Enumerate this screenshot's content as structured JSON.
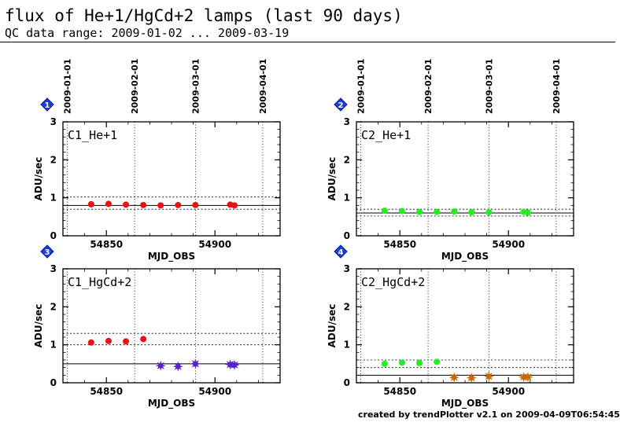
{
  "header": {
    "title": "flux of He+1/HgCd+2 lamps (last 90 days)",
    "subtitle": "QC data range: 2009-01-02 ... 2009-03-19"
  },
  "footer": {
    "credit": "created by trendPlotter v2.1 on 2009-04-09T06:54:45"
  },
  "chart_data": [
    {
      "type": "scatter",
      "badge": "1",
      "label": "C1_He+1",
      "xlabel": "MJD_OBS",
      "ylabel": "ADU/sec",
      "xlim": [
        54830,
        54930
      ],
      "ylim": [
        0,
        3
      ],
      "x_ticks": [
        54850,
        54900
      ],
      "y_ticks": [
        0,
        1,
        2,
        3
      ],
      "top_dates": [
        "2009-01-01",
        "2009-02-01",
        "2009-03-01",
        "2009-04-01"
      ],
      "date_mjd": [
        54832,
        54863,
        54891,
        54922
      ],
      "show_top_dates": true,
      "show_xlabel": true,
      "ref_line": 0.8,
      "ref_band": [
        0.7,
        1.02
      ],
      "series": [
        {
          "color": "#ee1111",
          "marker": "circle",
          "x": [
            54843,
            54851,
            54859,
            54867,
            54875,
            54883,
            54891,
            54907,
            54909
          ],
          "y": [
            0.83,
            0.84,
            0.82,
            0.81,
            0.8,
            0.81,
            0.81,
            0.82,
            0.8
          ]
        }
      ]
    },
    {
      "type": "scatter",
      "badge": "2",
      "label": "C2_He+1",
      "xlabel": "MJD_OBS",
      "ylabel": "ADU/sec",
      "xlim": [
        54830,
        54930
      ],
      "ylim": [
        0,
        3
      ],
      "x_ticks": [
        54850,
        54900
      ],
      "y_ticks": [
        0,
        1,
        2,
        3
      ],
      "top_dates": [
        "2009-01-01",
        "2009-02-01",
        "2009-03-01",
        "2009-04-01"
      ],
      "date_mjd": [
        54832,
        54863,
        54891,
        54922
      ],
      "show_top_dates": true,
      "show_xlabel": true,
      "ref_line": 0.6,
      "ref_band": [
        0.52,
        0.7
      ],
      "series": [
        {
          "color": "#22ee22",
          "marker": "circle",
          "x": [
            54843,
            54851,
            54859,
            54867,
            54875,
            54883,
            54891,
            54907,
            54909
          ],
          "y": [
            0.66,
            0.65,
            0.63,
            0.63,
            0.64,
            0.62,
            0.62,
            0.63,
            0.61
          ]
        }
      ]
    },
    {
      "type": "scatter",
      "badge": "3",
      "label": "C1_HgCd+2",
      "xlabel": "MJD_OBS",
      "ylabel": "ADU/sec",
      "xlim": [
        54830,
        54930
      ],
      "ylim": [
        0,
        3
      ],
      "x_ticks": [
        54850,
        54900
      ],
      "y_ticks": [
        0,
        1,
        2,
        3
      ],
      "top_dates": [],
      "date_mjd": [
        54832,
        54863,
        54891,
        54922
      ],
      "show_top_dates": false,
      "show_xlabel": true,
      "ref_line": 0.5,
      "ref_band": [
        1.0,
        1.3
      ],
      "series": [
        {
          "color": "#ee1111",
          "marker": "circle",
          "x": [
            54843,
            54851,
            54859,
            54867
          ],
          "y": [
            1.06,
            1.1,
            1.09,
            1.15
          ]
        },
        {
          "color": "#5522cc",
          "marker": "star",
          "x": [
            54875,
            54883,
            54891,
            54907,
            54909
          ],
          "y": [
            0.45,
            0.43,
            0.5,
            0.48,
            0.47
          ]
        }
      ]
    },
    {
      "type": "scatter",
      "badge": "4",
      "label": "C2_HgCd+2",
      "xlabel": "MJD_OBS",
      "ylabel": "ADU/sec",
      "xlim": [
        54830,
        54930
      ],
      "ylim": [
        0,
        3
      ],
      "x_ticks": [
        54850,
        54900
      ],
      "y_ticks": [
        0,
        1,
        2,
        3
      ],
      "top_dates": [],
      "date_mjd": [
        54832,
        54863,
        54891,
        54922
      ],
      "show_top_dates": false,
      "show_xlabel": true,
      "ref_line": 0.2,
      "ref_band": [
        0.4,
        0.6
      ],
      "series": [
        {
          "color": "#22ee22",
          "marker": "circle",
          "x": [
            54843,
            54851,
            54859,
            54867
          ],
          "y": [
            0.5,
            0.53,
            0.52,
            0.55
          ]
        },
        {
          "color": "#cc6600",
          "marker": "star",
          "x": [
            54875,
            54883,
            54891,
            54907,
            54909
          ],
          "y": [
            0.14,
            0.13,
            0.17,
            0.15,
            0.15
          ]
        }
      ]
    }
  ]
}
